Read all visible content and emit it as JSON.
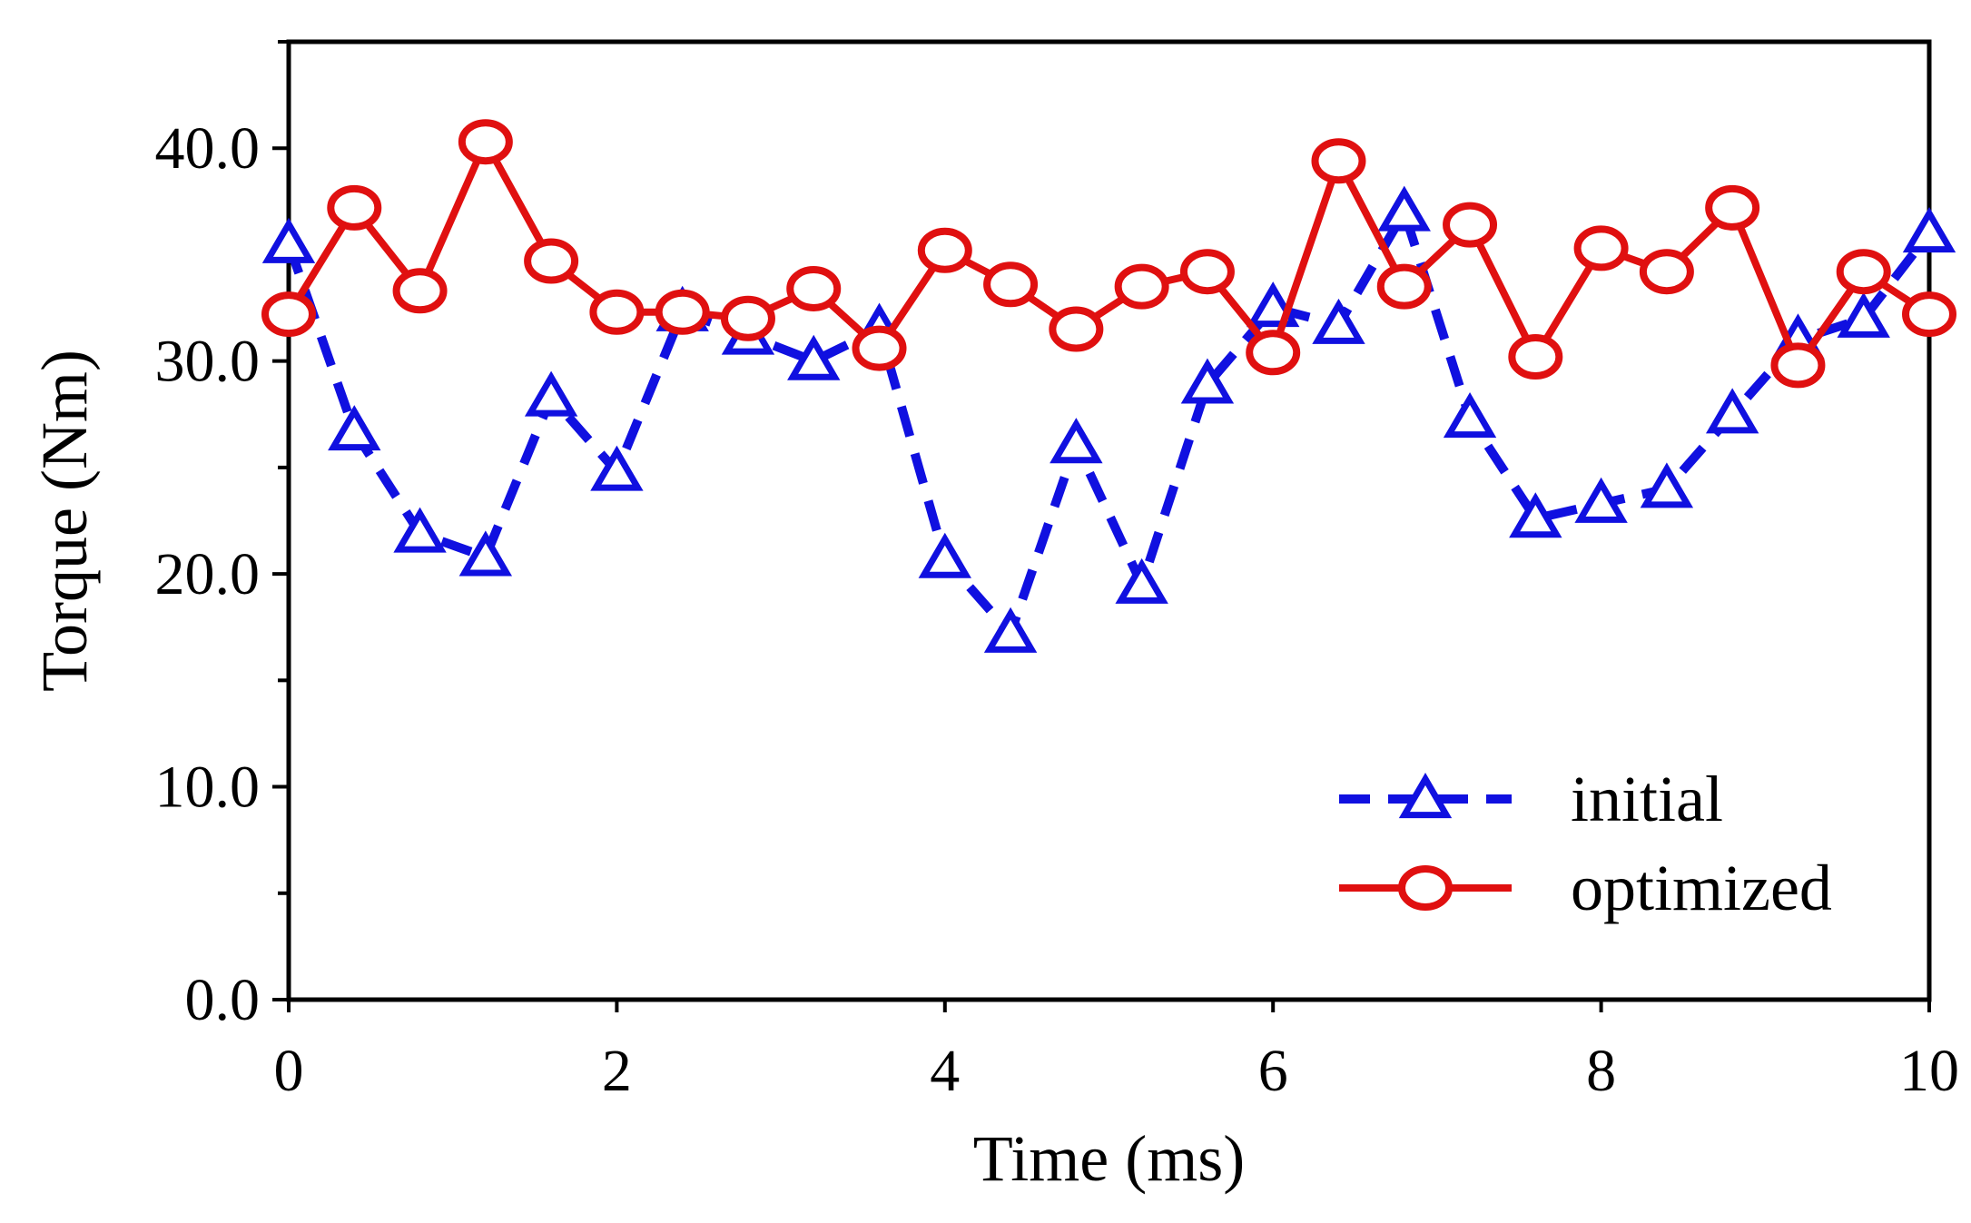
{
  "chart_data": {
    "type": "line",
    "title": "",
    "xlabel": "Time (ms)",
    "ylabel": "Torque (Nm)",
    "xlim": [
      0,
      10
    ],
    "ylim": [
      0,
      45
    ],
    "x_ticks": [
      0,
      2,
      4,
      6,
      8,
      10
    ],
    "x_tick_labels": [
      "0",
      "2",
      "4",
      "6",
      "8",
      "10"
    ],
    "y_ticks": [
      0,
      10,
      20,
      30,
      40
    ],
    "y_tick_labels": [
      "0.0",
      "10.0",
      "20.0",
      "30.0",
      "40.0"
    ],
    "y_minor_ticks": [
      5,
      15,
      25,
      35,
      45
    ],
    "grid": false,
    "legend_position": "bottom-right",
    "x": [
      0,
      0.4,
      0.8,
      1.2,
      1.6,
      2.0,
      2.4,
      2.8,
      3.2,
      3.6,
      4.0,
      4.4,
      4.8,
      5.2,
      5.6,
      6.0,
      6.4,
      6.8,
      7.2,
      7.6,
      8.0,
      8.4,
      8.8,
      9.2,
      9.6,
      10.0
    ],
    "series": [
      {
        "name": "initial",
        "color": "#1010e0",
        "line_style": "dashed",
        "marker": "triangle",
        "values": [
          35.5,
          26.7,
          21.9,
          20.8,
          28.3,
          24.8,
          32.3,
          31.2,
          30.0,
          31.5,
          20.7,
          17.2,
          26.1,
          19.5,
          28.9,
          32.5,
          31.7,
          37.0,
          27.3,
          22.6,
          23.3,
          24.0,
          27.5,
          31.0,
          32.0,
          36.0
        ]
      },
      {
        "name": "optimized",
        "color": "#e01010",
        "line_style": "solid",
        "marker": "circle",
        "values": [
          32.2,
          37.2,
          33.3,
          40.3,
          34.7,
          32.3,
          32.3,
          32.0,
          33.4,
          30.6,
          35.2,
          33.6,
          31.5,
          33.5,
          34.2,
          30.4,
          39.4,
          33.5,
          36.4,
          30.2,
          35.3,
          34.2,
          37.2,
          29.8,
          34.2,
          32.2
        ]
      }
    ]
  }
}
